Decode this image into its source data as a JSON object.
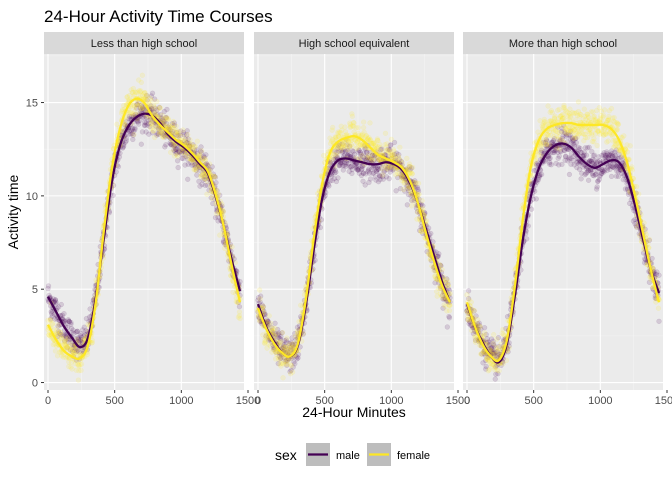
{
  "chart_data": {
    "type": "scatter",
    "title": "24-Hour Activity Time Courses",
    "xlabel": "24-Hour Minutes",
    "ylabel": "Activity time",
    "xlim": [
      -30,
      1470
    ],
    "ylim": [
      -0.4,
      17.6
    ],
    "x_ticks": [
      0,
      500,
      1000,
      1500
    ],
    "x_tick_labels": [
      "0",
      "500",
      "1000",
      "1500"
    ],
    "y_ticks": [
      0,
      5,
      10,
      15
    ],
    "y_tick_labels": [
      "0",
      "5",
      "10",
      "15"
    ],
    "grid": true,
    "legend": {
      "title": "sex",
      "position": "bottom",
      "entries": [
        {
          "label": "male",
          "color": "#440154"
        },
        {
          "label": "female",
          "color": "#FDE725"
        }
      ]
    },
    "panels": [
      {
        "label": "Less than high school",
        "series": [
          {
            "name": "male",
            "color": "#440154",
            "x": [
              0,
              60,
              120,
              180,
              240,
              300,
              360,
              420,
              480,
              540,
              600,
              660,
              720,
              780,
              840,
              900,
              960,
              1020,
              1080,
              1140,
              1200,
              1260,
              1320,
              1380,
              1440
            ],
            "y": [
              4.6,
              3.8,
              3.0,
              2.4,
              1.9,
              2.4,
              4.6,
              7.8,
              10.8,
              12.7,
              13.7,
              14.2,
              14.4,
              14.3,
              13.9,
              13.3,
              12.9,
              12.6,
              12.2,
              11.7,
              11.2,
              9.9,
              8.3,
              6.5,
              4.9
            ]
          },
          {
            "name": "female",
            "color": "#FDE725",
            "x": [
              0,
              60,
              120,
              180,
              240,
              300,
              360,
              420,
              480,
              540,
              600,
              660,
              720,
              780,
              840,
              900,
              960,
              1020,
              1080,
              1140,
              1200,
              1260,
              1320,
              1380,
              1440
            ],
            "y": [
              3.1,
              2.3,
              1.7,
              1.4,
              1.3,
              2.0,
              4.4,
              8.2,
              11.5,
              13.6,
              14.8,
              15.2,
              15.0,
              14.3,
              13.8,
              13.4,
              13.0,
              12.7,
              12.3,
              11.8,
              11.3,
              10.0,
              8.3,
              6.2,
              4.3
            ]
          }
        ]
      },
      {
        "label": "High school equivalent",
        "series": [
          {
            "name": "male",
            "color": "#440154",
            "x": [
              0,
              60,
              120,
              180,
              240,
              300,
              360,
              420,
              480,
              540,
              600,
              660,
              720,
              780,
              840,
              900,
              960,
              1020,
              1080,
              1140,
              1200,
              1260,
              1320,
              1380,
              1440
            ],
            "y": [
              4.2,
              3.0,
              2.2,
              1.6,
              1.4,
              2.0,
              4.2,
              7.2,
              9.8,
              11.3,
              11.9,
              12.0,
              11.9,
              11.8,
              11.7,
              11.7,
              11.8,
              11.7,
              11.4,
              10.7,
              9.6,
              8.2,
              6.8,
              5.4,
              4.3
            ]
          },
          {
            "name": "female",
            "color": "#FDE725",
            "x": [
              0,
              60,
              120,
              180,
              240,
              300,
              360,
              420,
              480,
              540,
              600,
              660,
              720,
              780,
              840,
              900,
              960,
              1020,
              1080,
              1140,
              1200,
              1260,
              1320,
              1380,
              1440
            ],
            "y": [
              4.0,
              2.9,
              2.1,
              1.6,
              1.4,
              2.1,
              4.5,
              7.8,
              10.6,
              12.3,
              12.9,
              13.1,
              13.2,
              13.0,
              12.6,
              12.2,
              12.0,
              11.8,
              11.5,
              10.8,
              9.6,
              8.0,
              6.5,
              5.2,
              4.3
            ]
          }
        ]
      },
      {
        "label": "More than high school",
        "series": [
          {
            "name": "male",
            "color": "#440154",
            "x": [
              0,
              60,
              120,
              180,
              240,
              300,
              360,
              420,
              480,
              540,
              600,
              660,
              720,
              780,
              840,
              900,
              960,
              1020,
              1080,
              1140,
              1200,
              1260,
              1320,
              1380,
              1440
            ],
            "y": [
              4.2,
              3.0,
              2.1,
              1.4,
              1.1,
              2.1,
              4.7,
              7.7,
              10.0,
              11.5,
              12.3,
              12.7,
              12.8,
              12.6,
              12.1,
              11.7,
              11.5,
              11.7,
              11.9,
              11.8,
              11.0,
              9.5,
              7.7,
              6.0,
              4.8
            ]
          },
          {
            "name": "female",
            "color": "#FDE725",
            "x": [
              0,
              60,
              120,
              180,
              240,
              300,
              360,
              420,
              480,
              540,
              600,
              660,
              720,
              780,
              840,
              900,
              960,
              1020,
              1080,
              1140,
              1200,
              1260,
              1320,
              1380,
              1440
            ],
            "y": [
              4.3,
              3.0,
              2.0,
              1.4,
              1.2,
              2.3,
              5.2,
              8.8,
              11.6,
              13.0,
              13.6,
              13.8,
              13.9,
              13.9,
              13.8,
              13.8,
              13.8,
              13.8,
              13.6,
              13.0,
              11.8,
              10.0,
              8.0,
              6.0,
              4.3
            ]
          }
        ]
      }
    ]
  }
}
